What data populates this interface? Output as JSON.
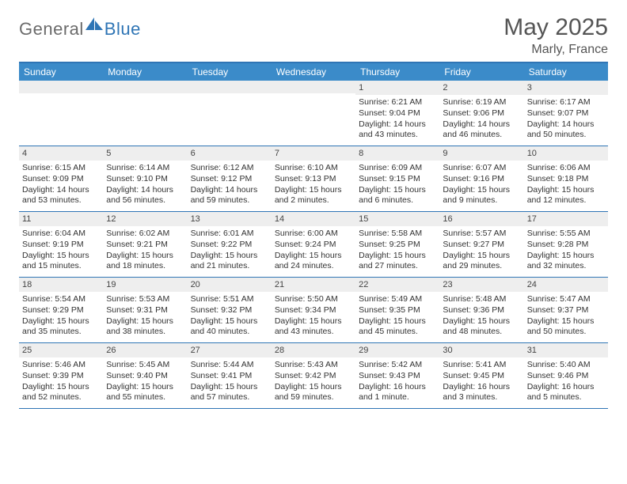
{
  "brand": {
    "general": "General",
    "blue": "Blue"
  },
  "title": "May 2025",
  "location": "Marly, France",
  "colors": {
    "header_bar": "#3b8bc9",
    "accent_line": "#2f75b5",
    "daynum_band": "#eeeeee",
    "text": "#333333",
    "title_text": "#555555",
    "logo_gray": "#6b6b6b",
    "logo_blue": "#2f75b5",
    "background": "#ffffff"
  },
  "day_headers": [
    "Sunday",
    "Monday",
    "Tuesday",
    "Wednesday",
    "Thursday",
    "Friday",
    "Saturday"
  ],
  "weeks": [
    [
      {
        "n": "",
        "sr": "",
        "ss": "",
        "d1": "",
        "d2": ""
      },
      {
        "n": "",
        "sr": "",
        "ss": "",
        "d1": "",
        "d2": ""
      },
      {
        "n": "",
        "sr": "",
        "ss": "",
        "d1": "",
        "d2": ""
      },
      {
        "n": "",
        "sr": "",
        "ss": "",
        "d1": "",
        "d2": ""
      },
      {
        "n": "1",
        "sr": "Sunrise: 6:21 AM",
        "ss": "Sunset: 9:04 PM",
        "d1": "Daylight: 14 hours",
        "d2": "and 43 minutes."
      },
      {
        "n": "2",
        "sr": "Sunrise: 6:19 AM",
        "ss": "Sunset: 9:06 PM",
        "d1": "Daylight: 14 hours",
        "d2": "and 46 minutes."
      },
      {
        "n": "3",
        "sr": "Sunrise: 6:17 AM",
        "ss": "Sunset: 9:07 PM",
        "d1": "Daylight: 14 hours",
        "d2": "and 50 minutes."
      }
    ],
    [
      {
        "n": "4",
        "sr": "Sunrise: 6:15 AM",
        "ss": "Sunset: 9:09 PM",
        "d1": "Daylight: 14 hours",
        "d2": "and 53 minutes."
      },
      {
        "n": "5",
        "sr": "Sunrise: 6:14 AM",
        "ss": "Sunset: 9:10 PM",
        "d1": "Daylight: 14 hours",
        "d2": "and 56 minutes."
      },
      {
        "n": "6",
        "sr": "Sunrise: 6:12 AM",
        "ss": "Sunset: 9:12 PM",
        "d1": "Daylight: 14 hours",
        "d2": "and 59 minutes."
      },
      {
        "n": "7",
        "sr": "Sunrise: 6:10 AM",
        "ss": "Sunset: 9:13 PM",
        "d1": "Daylight: 15 hours",
        "d2": "and 2 minutes."
      },
      {
        "n": "8",
        "sr": "Sunrise: 6:09 AM",
        "ss": "Sunset: 9:15 PM",
        "d1": "Daylight: 15 hours",
        "d2": "and 6 minutes."
      },
      {
        "n": "9",
        "sr": "Sunrise: 6:07 AM",
        "ss": "Sunset: 9:16 PM",
        "d1": "Daylight: 15 hours",
        "d2": "and 9 minutes."
      },
      {
        "n": "10",
        "sr": "Sunrise: 6:06 AM",
        "ss": "Sunset: 9:18 PM",
        "d1": "Daylight: 15 hours",
        "d2": "and 12 minutes."
      }
    ],
    [
      {
        "n": "11",
        "sr": "Sunrise: 6:04 AM",
        "ss": "Sunset: 9:19 PM",
        "d1": "Daylight: 15 hours",
        "d2": "and 15 minutes."
      },
      {
        "n": "12",
        "sr": "Sunrise: 6:02 AM",
        "ss": "Sunset: 9:21 PM",
        "d1": "Daylight: 15 hours",
        "d2": "and 18 minutes."
      },
      {
        "n": "13",
        "sr": "Sunrise: 6:01 AM",
        "ss": "Sunset: 9:22 PM",
        "d1": "Daylight: 15 hours",
        "d2": "and 21 minutes."
      },
      {
        "n": "14",
        "sr": "Sunrise: 6:00 AM",
        "ss": "Sunset: 9:24 PM",
        "d1": "Daylight: 15 hours",
        "d2": "and 24 minutes."
      },
      {
        "n": "15",
        "sr": "Sunrise: 5:58 AM",
        "ss": "Sunset: 9:25 PM",
        "d1": "Daylight: 15 hours",
        "d2": "and 27 minutes."
      },
      {
        "n": "16",
        "sr": "Sunrise: 5:57 AM",
        "ss": "Sunset: 9:27 PM",
        "d1": "Daylight: 15 hours",
        "d2": "and 29 minutes."
      },
      {
        "n": "17",
        "sr": "Sunrise: 5:55 AM",
        "ss": "Sunset: 9:28 PM",
        "d1": "Daylight: 15 hours",
        "d2": "and 32 minutes."
      }
    ],
    [
      {
        "n": "18",
        "sr": "Sunrise: 5:54 AM",
        "ss": "Sunset: 9:29 PM",
        "d1": "Daylight: 15 hours",
        "d2": "and 35 minutes."
      },
      {
        "n": "19",
        "sr": "Sunrise: 5:53 AM",
        "ss": "Sunset: 9:31 PM",
        "d1": "Daylight: 15 hours",
        "d2": "and 38 minutes."
      },
      {
        "n": "20",
        "sr": "Sunrise: 5:51 AM",
        "ss": "Sunset: 9:32 PM",
        "d1": "Daylight: 15 hours",
        "d2": "and 40 minutes."
      },
      {
        "n": "21",
        "sr": "Sunrise: 5:50 AM",
        "ss": "Sunset: 9:34 PM",
        "d1": "Daylight: 15 hours",
        "d2": "and 43 minutes."
      },
      {
        "n": "22",
        "sr": "Sunrise: 5:49 AM",
        "ss": "Sunset: 9:35 PM",
        "d1": "Daylight: 15 hours",
        "d2": "and 45 minutes."
      },
      {
        "n": "23",
        "sr": "Sunrise: 5:48 AM",
        "ss": "Sunset: 9:36 PM",
        "d1": "Daylight: 15 hours",
        "d2": "and 48 minutes."
      },
      {
        "n": "24",
        "sr": "Sunrise: 5:47 AM",
        "ss": "Sunset: 9:37 PM",
        "d1": "Daylight: 15 hours",
        "d2": "and 50 minutes."
      }
    ],
    [
      {
        "n": "25",
        "sr": "Sunrise: 5:46 AM",
        "ss": "Sunset: 9:39 PM",
        "d1": "Daylight: 15 hours",
        "d2": "and 52 minutes."
      },
      {
        "n": "26",
        "sr": "Sunrise: 5:45 AM",
        "ss": "Sunset: 9:40 PM",
        "d1": "Daylight: 15 hours",
        "d2": "and 55 minutes."
      },
      {
        "n": "27",
        "sr": "Sunrise: 5:44 AM",
        "ss": "Sunset: 9:41 PM",
        "d1": "Daylight: 15 hours",
        "d2": "and 57 minutes."
      },
      {
        "n": "28",
        "sr": "Sunrise: 5:43 AM",
        "ss": "Sunset: 9:42 PM",
        "d1": "Daylight: 15 hours",
        "d2": "and 59 minutes."
      },
      {
        "n": "29",
        "sr": "Sunrise: 5:42 AM",
        "ss": "Sunset: 9:43 PM",
        "d1": "Daylight: 16 hours",
        "d2": "and 1 minute."
      },
      {
        "n": "30",
        "sr": "Sunrise: 5:41 AM",
        "ss": "Sunset: 9:45 PM",
        "d1": "Daylight: 16 hours",
        "d2": "and 3 minutes."
      },
      {
        "n": "31",
        "sr": "Sunrise: 5:40 AM",
        "ss": "Sunset: 9:46 PM",
        "d1": "Daylight: 16 hours",
        "d2": "and 5 minutes."
      }
    ]
  ]
}
